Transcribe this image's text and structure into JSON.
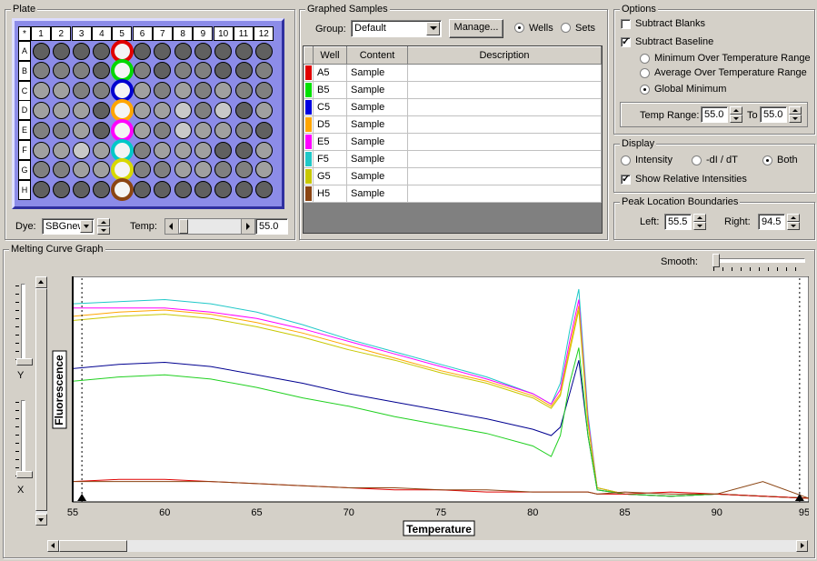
{
  "plate": {
    "title": "Plate",
    "corner": "*",
    "columns": [
      "1",
      "2",
      "3",
      "4",
      "5",
      "6",
      "7",
      "8",
      "9",
      "10",
      "11",
      "12"
    ],
    "rows": [
      "A",
      "B",
      "C",
      "D",
      "E",
      "F",
      "G",
      "H"
    ],
    "dye_label": "Dye:",
    "dye_value": "SBGnew",
    "temp_label": "Temp:",
    "temp_value": "55.0",
    "selected_rings": [
      "#e00000",
      "#00d800",
      "#0000d0",
      "#ffa500",
      "#ff00ff",
      "#00c8c8",
      "#d8d800",
      "#8b4513"
    ]
  },
  "graphed": {
    "title": "Graphed Samples",
    "group_label": "Group:",
    "group_value": "Default",
    "manage_label": "Manage...",
    "wells_label": "Wells",
    "sets_label": "Sets",
    "headers": [
      "Well",
      "Content",
      "Description"
    ],
    "rows": [
      {
        "color": "#e00000",
        "well": "A5",
        "content": "Sample",
        "description": ""
      },
      {
        "color": "#00e000",
        "well": "B5",
        "content": "Sample",
        "description": ""
      },
      {
        "color": "#0000e0",
        "well": "C5",
        "content": "Sample",
        "description": ""
      },
      {
        "color": "#ffa500",
        "well": "D5",
        "content": "Sample",
        "description": ""
      },
      {
        "color": "#ff00ff",
        "well": "E5",
        "content": "Sample",
        "description": ""
      },
      {
        "color": "#20c8c8",
        "well": "F5",
        "content": "Sample",
        "description": ""
      },
      {
        "color": "#c8c800",
        "well": "G5",
        "content": "Sample",
        "description": ""
      },
      {
        "color": "#8b4513",
        "well": "H5",
        "content": "Sample",
        "description": ""
      }
    ]
  },
  "options": {
    "title": "Options",
    "subtract_blanks": "Subtract Blanks",
    "subtract_baseline": "Subtract Baseline",
    "min_range": "Minimum Over Temperature Range",
    "avg_range": "Average Over Temperature Range",
    "global_min": "Global Minimum",
    "temp_range_label": "Temp Range:",
    "temp_from": "55.0",
    "to_label": "To",
    "temp_to": "55.0"
  },
  "display": {
    "title": "Display",
    "intensity": "Intensity",
    "dI_dT": "-dI / dT",
    "both": "Both",
    "show_relative": "Show Relative Intensities"
  },
  "peak": {
    "title": "Peak Location Boundaries",
    "left_label": "Left:",
    "left_value": "55.5",
    "right_label": "Right:",
    "right_value": "94.5"
  },
  "melt": {
    "title": "Melting Curve Graph",
    "smooth_label": "Smooth:",
    "y_label": "Y",
    "x_label": "X"
  },
  "chart_data": {
    "type": "line",
    "xlabel": "Temperature",
    "ylabel": "Fluorescence",
    "xlim": [
      55,
      95
    ],
    "x_ticks": [
      "55",
      "60",
      "65",
      "70",
      "75",
      "80",
      "85",
      "90",
      "95"
    ],
    "x": [
      55,
      57.5,
      60,
      62.5,
      65,
      67.5,
      70,
      72.5,
      75,
      77.5,
      80,
      81,
      81.5,
      82,
      82.5,
      83,
      83.5,
      85,
      87.5,
      90,
      92.5,
      95
    ],
    "series": [
      {
        "color": "#20c8c8",
        "values": [
          0.93,
          0.94,
          0.95,
          0.93,
          0.89,
          0.83,
          0.76,
          0.7,
          0.64,
          0.58,
          0.5,
          0.45,
          0.55,
          0.8,
          1.0,
          0.4,
          0.05,
          0.02,
          0.01,
          0.02,
          0.01,
          0.0
        ]
      },
      {
        "color": "#ff00ff",
        "values": [
          0.91,
          0.91,
          0.91,
          0.89,
          0.86,
          0.81,
          0.75,
          0.69,
          0.63,
          0.57,
          0.5,
          0.45,
          0.52,
          0.75,
          0.95,
          0.38,
          0.05,
          0.02,
          0.01,
          0.02,
          0.01,
          0.0
        ]
      },
      {
        "color": "#ffa500",
        "values": [
          0.87,
          0.89,
          0.9,
          0.88,
          0.84,
          0.79,
          0.73,
          0.67,
          0.61,
          0.56,
          0.49,
          0.44,
          0.5,
          0.72,
          0.92,
          0.36,
          0.05,
          0.02,
          0.01,
          0.02,
          0.01,
          0.0
        ]
      },
      {
        "color": "#c8c800",
        "values": [
          0.85,
          0.87,
          0.88,
          0.86,
          0.82,
          0.77,
          0.71,
          0.66,
          0.6,
          0.55,
          0.48,
          0.43,
          0.49,
          0.7,
          0.9,
          0.35,
          0.05,
          0.02,
          0.01,
          0.02,
          0.01,
          0.0
        ]
      },
      {
        "color": "#000090",
        "values": [
          0.62,
          0.64,
          0.65,
          0.63,
          0.59,
          0.55,
          0.5,
          0.46,
          0.42,
          0.38,
          0.33,
          0.3,
          0.34,
          0.5,
          0.66,
          0.3,
          0.04,
          0.02,
          0.01,
          0.02,
          0.01,
          0.0
        ]
      },
      {
        "color": "#20d020",
        "values": [
          0.56,
          0.58,
          0.59,
          0.57,
          0.53,
          0.48,
          0.44,
          0.39,
          0.35,
          0.31,
          0.25,
          0.2,
          0.3,
          0.55,
          0.72,
          0.3,
          0.04,
          0.02,
          0.01,
          0.02,
          0.01,
          0.0
        ]
      },
      {
        "color": "#e00000",
        "values": [
          0.08,
          0.09,
          0.09,
          0.08,
          0.07,
          0.06,
          0.05,
          0.04,
          0.04,
          0.03,
          0.03,
          0.03,
          0.03,
          0.03,
          0.03,
          0.03,
          0.02,
          0.02,
          0.03,
          0.02,
          0.01,
          0.0
        ]
      },
      {
        "color": "#8b4513",
        "values": [
          0.08,
          0.08,
          0.08,
          0.08,
          0.07,
          0.06,
          0.05,
          0.05,
          0.04,
          0.04,
          0.03,
          0.03,
          0.03,
          0.03,
          0.03,
          0.03,
          0.02,
          0.03,
          0.02,
          0.02,
          0.08,
          0.0
        ]
      }
    ]
  }
}
